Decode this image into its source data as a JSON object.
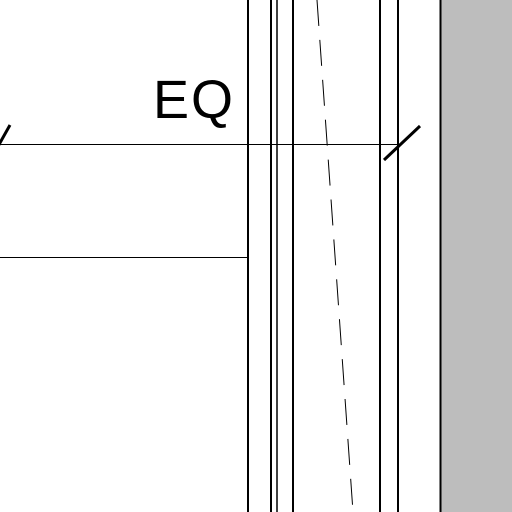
{
  "drawing": {
    "dimension_label": "EQ",
    "colors": {
      "line": "#000000",
      "hatch_fill": "#bdbdbd",
      "background": "#ffffff"
    }
  }
}
